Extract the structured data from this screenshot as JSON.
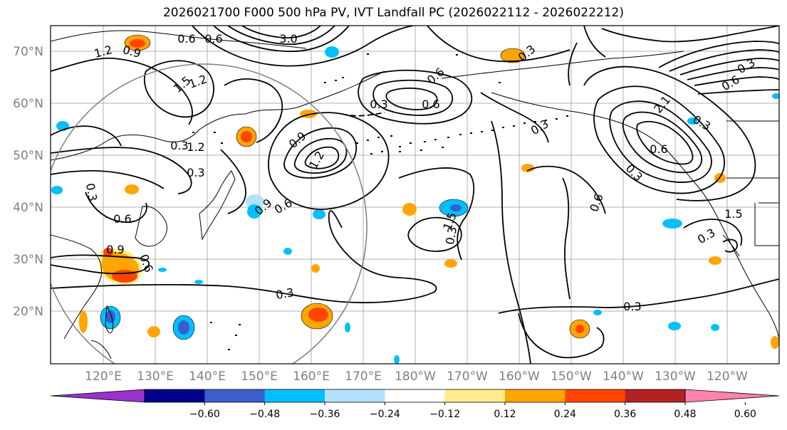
{
  "title": "2026021700 F000 500 hPa PV, IVT Landfall PC (2026022112 - 2026022212)",
  "lat_labels": [
    "70°N",
    "60°N",
    "50°N",
    "40°N",
    "30°N",
    "20°N"
  ],
  "lon_labels": [
    "120°E",
    "130°E",
    "140°E",
    "150°E",
    "160°E",
    "170°E",
    "180°W",
    "170°W",
    "160°W",
    "150°W",
    "140°W",
    "130°W",
    "120°W"
  ],
  "colorbar": {
    "tick_labels": [
      "−0.60",
      "−0.48",
      "−0.36",
      "−0.24",
      "−0.12",
      "0.12",
      "0.24",
      "0.36",
      "0.48",
      "0.60"
    ],
    "colors": [
      "#9932cc",
      "#00008b",
      "#3a5fcd",
      "#00bfff",
      "#b0e2ff",
      "#ffffff",
      "#ffec8b",
      "#ffa500",
      "#ff4500",
      "#b22222",
      "#ff82ab"
    ]
  },
  "contour_labels": [
    "1.2",
    "0.9",
    "0.6",
    "0.6",
    "3.0",
    "1.2",
    "0.3",
    "1.5",
    "1.2",
    "0.3",
    "0.3",
    "0.6",
    "0.9",
    "0.6",
    "0.3",
    "0.9",
    "0.6",
    "0.9",
    "1.2",
    "0.3",
    "0.6",
    "0.6",
    "0.3",
    "0.6",
    "0.3",
    "1.5",
    "0.3",
    "0.3",
    "1.5",
    "2.1",
    "0.6",
    "0.6",
    "0.3",
    "0.3",
    "0.3",
    "0.3"
  ]
}
